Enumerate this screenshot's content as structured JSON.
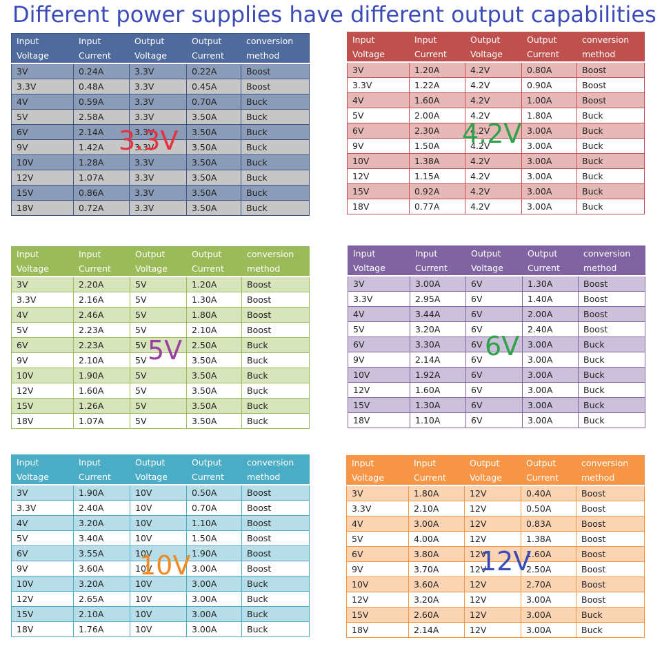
{
  "title": "Different power supplies have different output capabilities :",
  "header_line1": [
    "Input",
    "Input",
    "Output",
    "Output",
    "conversion"
  ],
  "header_line2": [
    "Voltage",
    "Current",
    "Voltage",
    "Current",
    "method"
  ],
  "input_voltages": [
    "3V",
    "3.3V",
    "4V",
    "5V",
    "6V",
    "9V",
    "10V",
    "12V",
    "15V",
    "18V"
  ],
  "tables": [
    {
      "label": "3.3V",
      "label_color": "#e53240",
      "theme": {
        "header": "#4f6b9e",
        "band": "#8a9cb8",
        "alt": "#c6c6c6",
        "border": "#3c5580"
      },
      "rows": [
        [
          "0.24A",
          "3.3V",
          "0.22A",
          "Boost"
        ],
        [
          "0.48A",
          "3.3V",
          "0.45A",
          "Boost"
        ],
        [
          "0.59A",
          "3.3V",
          "0.70A",
          "Buck"
        ],
        [
          "2.58A",
          "3.3V",
          "3.50A",
          "Buck"
        ],
        [
          "2.14A",
          "3.3V",
          "3.50A",
          "Buck"
        ],
        [
          "1.42A",
          "3.3V",
          "3.50A",
          "Buck"
        ],
        [
          "1.28A",
          "3.3V",
          "3.50A",
          "Buck"
        ],
        [
          "1.07A",
          "3.3V",
          "3.50A",
          "Buck"
        ],
        [
          "0.86A",
          "3.3V",
          "3.50A",
          "Buck"
        ],
        [
          "0.72A",
          "3.3V",
          "3.50A",
          "Buck"
        ]
      ]
    },
    {
      "label": "4.2V",
      "label_color": "#2ea34a",
      "theme": {
        "header": "#c0504d",
        "band": "#e6b9b8",
        "alt": "#ffffff",
        "border": "#c0504d"
      },
      "rows": [
        [
          "1.20A",
          "4.2V",
          "0.80A",
          "Boost"
        ],
        [
          "1.22A",
          "4.2V",
          "0.90A",
          "Boost"
        ],
        [
          "1.60A",
          "4.2V",
          "1.00A",
          "Boost"
        ],
        [
          "2.00A",
          "4.2V",
          "1.80A",
          "Buck"
        ],
        [
          "2.30A",
          "4.2V",
          "3.00A",
          "Buck"
        ],
        [
          "1.50A",
          "4.2V",
          "3.00A",
          "Buck"
        ],
        [
          "1.38A",
          "4.2V",
          "3.00A",
          "Buck"
        ],
        [
          "1.15A",
          "4.2V",
          "3.00A",
          "Buck"
        ],
        [
          "0.92A",
          "4.2V",
          "3.00A",
          "Buck"
        ],
        [
          "0.77A",
          "4.2V",
          "3.00A",
          "Buck"
        ]
      ]
    },
    {
      "label": "5V",
      "label_color": "#9b3fa0",
      "theme": {
        "header": "#9bbb59",
        "band": "#d7e4bc",
        "alt": "#ffffff",
        "border": "#9bbb59"
      },
      "rows": [
        [
          "2.20A",
          "5V",
          "1.20A",
          "Boost"
        ],
        [
          "2.16A",
          "5V",
          "1.30A",
          "Boost"
        ],
        [
          "2.46A",
          "5V",
          "1.80A",
          "Boost"
        ],
        [
          "2.23A",
          "5V",
          "2.10A",
          "Boost"
        ],
        [
          "2.23A",
          "5V",
          "2.50A",
          "Buck"
        ],
        [
          "2.10A",
          "5V",
          "3.50A",
          "Buck"
        ],
        [
          "1.90A",
          "5V",
          "3.50A",
          "Buck"
        ],
        [
          "1.60A",
          "5V",
          "3.50A",
          "Buck"
        ],
        [
          "1.26A",
          "5V",
          "3.50A",
          "Buck"
        ],
        [
          "1.07A",
          "5V",
          "3.50A",
          "Buck"
        ]
      ]
    },
    {
      "label": "6V",
      "label_color": "#2ea34a",
      "theme": {
        "header": "#8064a2",
        "band": "#ccc0da",
        "alt": "#ffffff",
        "border": "#8064a2"
      },
      "rows": [
        [
          "3.00A",
          "6V",
          "1.30A",
          "Boost"
        ],
        [
          "2.95A",
          "6V",
          "1.40A",
          "Boost"
        ],
        [
          "3.44A",
          "6V",
          "2.00A",
          "Boost"
        ],
        [
          "3.20A",
          "6V",
          "2.40A",
          "Boost"
        ],
        [
          "3.30A",
          "6V",
          "3.00A",
          "Buck"
        ],
        [
          "2.14A",
          "6V",
          "3.00A",
          "Buck"
        ],
        [
          "1.92A",
          "6V",
          "3.00A",
          "Buck"
        ],
        [
          "1.60A",
          "6V",
          "3.00A",
          "Buck"
        ],
        [
          "1.30A",
          "6V",
          "3.00A",
          "Buck"
        ],
        [
          "1.10A",
          "6V",
          "3.00A",
          "Buck"
        ]
      ]
    },
    {
      "label": "10V",
      "label_color": "#f08a24",
      "theme": {
        "header": "#4bacc6",
        "band": "#b7dde8",
        "alt": "#ffffff",
        "border": "#4bacc6"
      },
      "rows": [
        [
          "1.90A",
          "10V",
          "0.50A",
          "Boost"
        ],
        [
          "2.40A",
          "10V",
          "0.70A",
          "Boost"
        ],
        [
          "3.20A",
          "10V",
          "1.10A",
          "Boost"
        ],
        [
          "3.40A",
          "10V",
          "1.50A",
          "Boost"
        ],
        [
          "3.55A",
          "10V",
          "1.90A",
          "Boost"
        ],
        [
          "3.60A",
          "10V",
          "3.00A",
          "Boost"
        ],
        [
          "3.20A",
          "10V",
          "3.00A",
          "Buck"
        ],
        [
          "2.65A",
          "10V",
          "3.00A",
          "Buck"
        ],
        [
          "2.10A",
          "10V",
          "3.00A",
          "Buck"
        ],
        [
          "1.76A",
          "10V",
          "3.00A",
          "Buck"
        ]
      ]
    },
    {
      "label": "12V",
      "label_color": "#3b4bb8",
      "theme": {
        "header": "#f79646",
        "band": "#fbd4b4",
        "alt": "#ffffff",
        "border": "#f79646"
      },
      "rows": [
        [
          "1.80A",
          "12V",
          "0.40A",
          "Boost"
        ],
        [
          "2.10A",
          "12V",
          "0.50A",
          "Boost"
        ],
        [
          "3.00A",
          "12V",
          "0.83A",
          "Boost"
        ],
        [
          "4.00A",
          "12V",
          "1.38A",
          "Boost"
        ],
        [
          "3.80A",
          "12V",
          "1.60A",
          "Boost"
        ],
        [
          "3.70A",
          "12V",
          "2.50A",
          "Boost"
        ],
        [
          "3.60A",
          "12V",
          "2.70A",
          "Boost"
        ],
        [
          "3.20A",
          "12V",
          "3.00A",
          "Boost"
        ],
        [
          "2.60A",
          "12V",
          "3.00A",
          "Buck"
        ],
        [
          "2.14A",
          "12V",
          "3.00A",
          "Buck"
        ]
      ]
    }
  ]
}
